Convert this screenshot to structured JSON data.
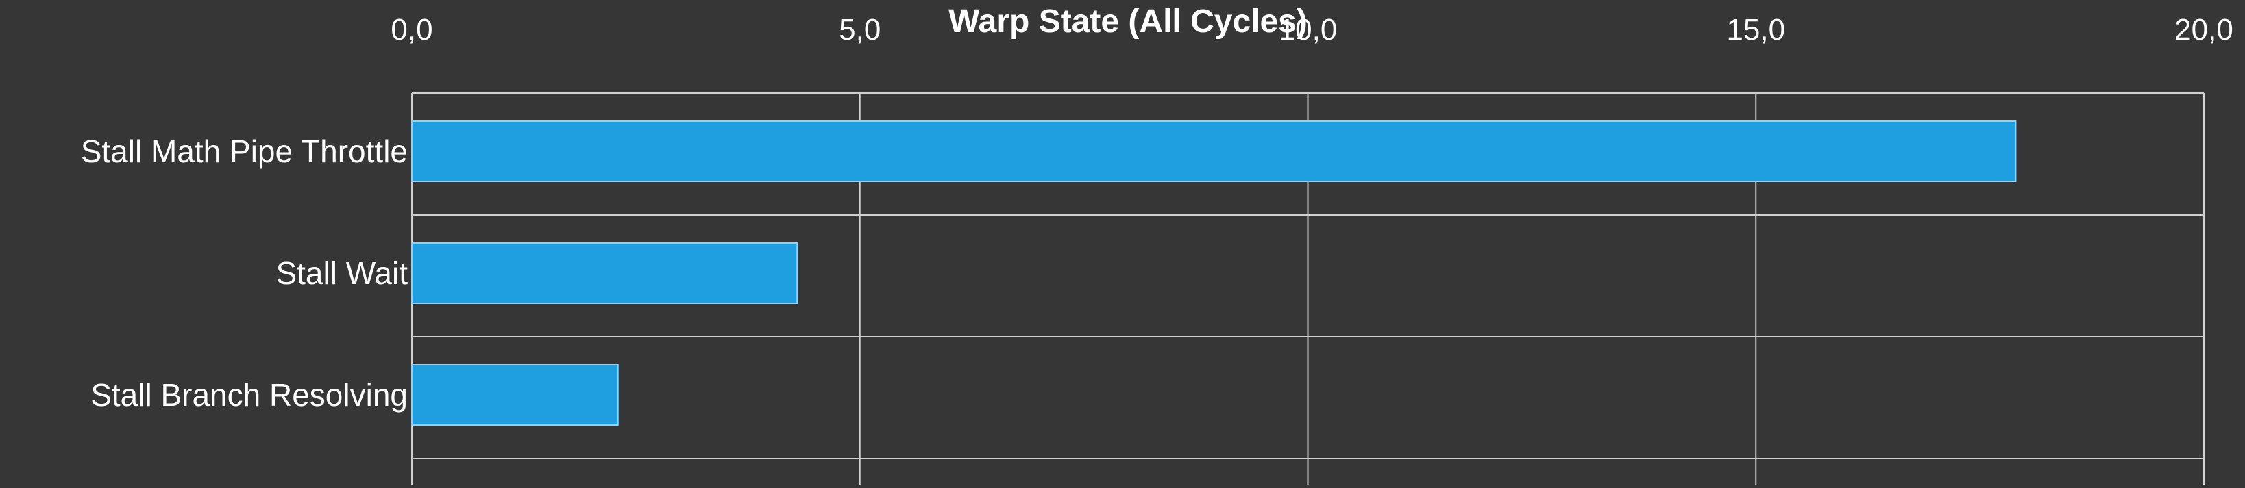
{
  "chart_data": {
    "type": "bar",
    "orientation": "horizontal",
    "title": "Warp State (All Cycles)",
    "categories": [
      "Stall Math Pipe Throttle",
      "Stall Wait",
      "Stall Branch Resolving"
    ],
    "values": [
      17.9,
      4.3,
      2.3
    ],
    "xlim": [
      0,
      20
    ],
    "x_ticks": [
      "0,0",
      "5,0",
      "10,0",
      "15,0",
      "20,0"
    ],
    "x_axis_position": "top",
    "grid": true,
    "colors": {
      "background": "#363636",
      "bar_fill": "#1f9fe0",
      "bar_stroke": "#8fd2f5",
      "grid": "#cfcfcf",
      "text": "#ffffff"
    }
  }
}
